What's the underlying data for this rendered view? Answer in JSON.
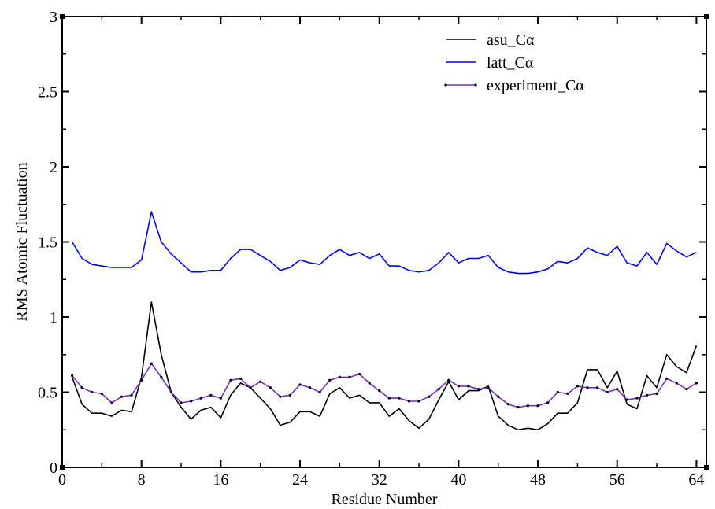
{
  "chart_data": {
    "type": "line",
    "title": "",
    "xlabel": "Residue Number",
    "ylabel": "RMS Atomic Fluctuation",
    "xlim": [
      0,
      65
    ],
    "ylim": [
      0,
      3
    ],
    "xticks": [
      0,
      8,
      16,
      24,
      32,
      40,
      48,
      56,
      64
    ],
    "yticks": [
      0,
      0.5,
      1,
      1.5,
      2,
      2.5,
      3
    ],
    "ytick_labels": [
      "0",
      "0.5",
      "1",
      "1.5",
      "2",
      "2.5",
      "3"
    ],
    "grid": false,
    "legend_position": "top-right",
    "x": [
      1,
      2,
      3,
      4,
      5,
      6,
      7,
      8,
      9,
      10,
      11,
      12,
      13,
      14,
      15,
      16,
      17,
      18,
      19,
      20,
      21,
      22,
      23,
      24,
      25,
      26,
      27,
      28,
      29,
      30,
      31,
      32,
      33,
      34,
      35,
      36,
      37,
      38,
      39,
      40,
      41,
      42,
      43,
      44,
      45,
      46,
      47,
      48,
      49,
      50,
      51,
      52,
      53,
      54,
      55,
      56,
      57,
      58,
      59,
      60,
      61,
      62,
      63,
      64
    ],
    "series": [
      {
        "name": "asu_Cα",
        "color": "#000000",
        "marker": false,
        "values": [
          0.6,
          0.42,
          0.36,
          0.36,
          0.34,
          0.38,
          0.37,
          0.6,
          1.1,
          0.75,
          0.5,
          0.4,
          0.32,
          0.38,
          0.4,
          0.33,
          0.48,
          0.56,
          0.53,
          0.46,
          0.39,
          0.28,
          0.3,
          0.37,
          0.37,
          0.34,
          0.49,
          0.53,
          0.46,
          0.48,
          0.43,
          0.43,
          0.34,
          0.39,
          0.31,
          0.26,
          0.32,
          0.45,
          0.57,
          0.45,
          0.51,
          0.51,
          0.54,
          0.34,
          0.28,
          0.25,
          0.26,
          0.25,
          0.29,
          0.36,
          0.36,
          0.43,
          0.65,
          0.65,
          0.53,
          0.64,
          0.42,
          0.39,
          0.61,
          0.53,
          0.75,
          0.67,
          0.63,
          0.81
        ]
      },
      {
        "name": "latt_Cα",
        "color": "#0000ff",
        "marker": false,
        "values": [
          1.5,
          1.39,
          1.35,
          1.34,
          1.33,
          1.33,
          1.33,
          1.38,
          1.7,
          1.5,
          1.42,
          1.36,
          1.3,
          1.3,
          1.31,
          1.31,
          1.39,
          1.45,
          1.45,
          1.41,
          1.37,
          1.31,
          1.33,
          1.38,
          1.36,
          1.35,
          1.41,
          1.45,
          1.41,
          1.43,
          1.39,
          1.42,
          1.34,
          1.34,
          1.31,
          1.3,
          1.31,
          1.36,
          1.43,
          1.36,
          1.39,
          1.39,
          1.41,
          1.33,
          1.3,
          1.29,
          1.29,
          1.3,
          1.32,
          1.37,
          1.36,
          1.39,
          1.46,
          1.43,
          1.41,
          1.47,
          1.36,
          1.34,
          1.43,
          1.35,
          1.49,
          1.44,
          1.4,
          1.43
        ]
      },
      {
        "name": "experiment_Cα",
        "color": "#7b2fbf",
        "marker": true,
        "values": [
          0.61,
          0.53,
          0.5,
          0.49,
          0.43,
          0.47,
          0.48,
          0.58,
          0.69,
          0.6,
          0.5,
          0.43,
          0.44,
          0.46,
          0.48,
          0.46,
          0.58,
          0.59,
          0.53,
          0.57,
          0.53,
          0.47,
          0.48,
          0.55,
          0.53,
          0.5,
          0.58,
          0.6,
          0.6,
          0.62,
          0.56,
          0.51,
          0.46,
          0.46,
          0.44,
          0.44,
          0.47,
          0.52,
          0.58,
          0.54,
          0.54,
          0.52,
          0.53,
          0.47,
          0.42,
          0.4,
          0.41,
          0.41,
          0.43,
          0.5,
          0.49,
          0.54,
          0.53,
          0.53,
          0.5,
          0.52,
          0.45,
          0.46,
          0.48,
          0.49,
          0.59,
          0.56,
          0.52,
          0.56
        ]
      }
    ]
  }
}
